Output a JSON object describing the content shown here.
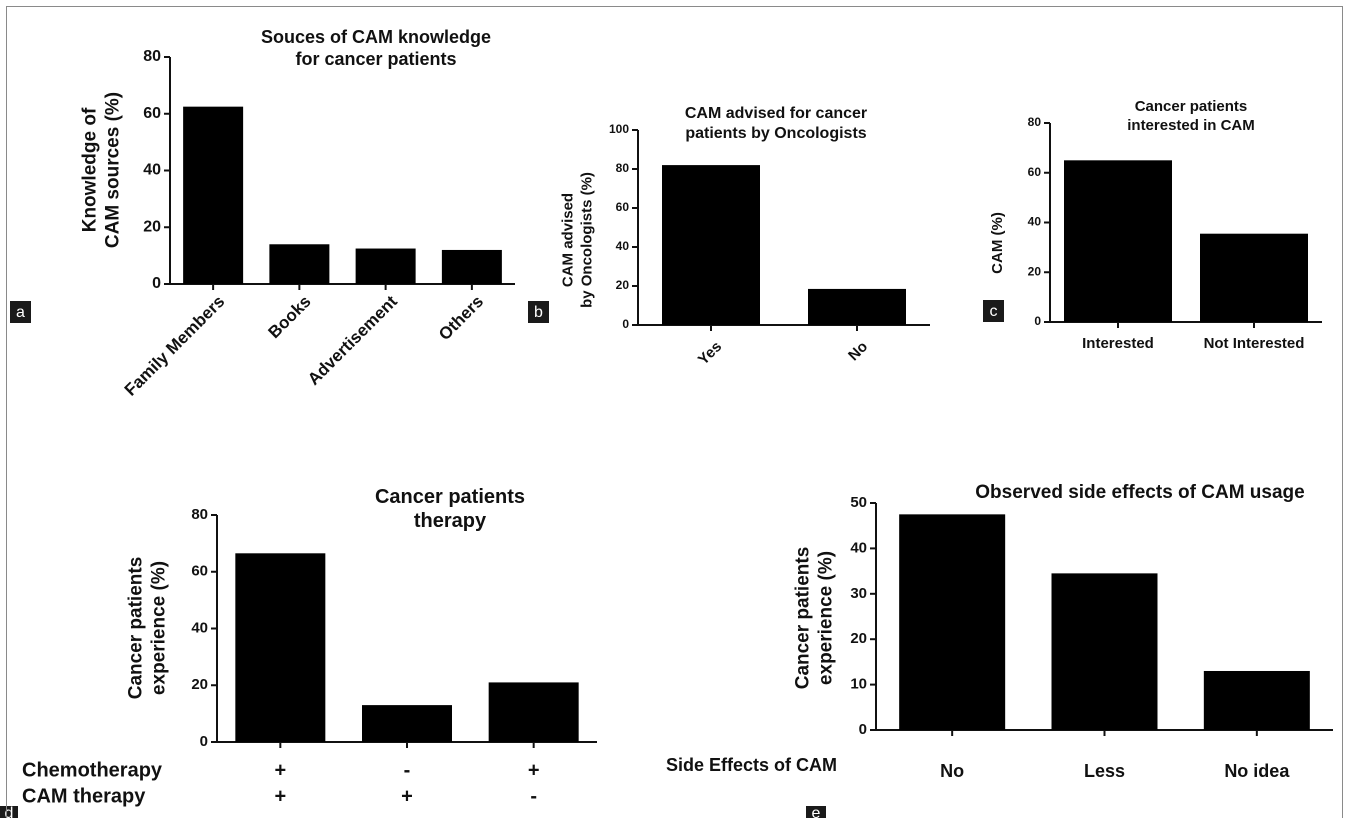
{
  "chart_data": [
    {
      "panel_label": "a",
      "type": "bar",
      "title": "Souces of CAM knowledge\nfor cancer patients",
      "ylabel": "Knowledge of\nCAM sources (%)",
      "xlabel": "",
      "categories": [
        "Family Members",
        "Books",
        "Advertisement",
        "Others"
      ],
      "values": [
        62.5,
        14,
        12.5,
        12
      ],
      "ylim": [
        0,
        80
      ],
      "yticks": [
        0,
        20,
        40,
        60,
        80
      ],
      "bar_color": "#000000"
    },
    {
      "panel_label": "b",
      "type": "bar",
      "title": "CAM advised for cancer\npatients by Oncologists",
      "ylabel": "CAM advised\nby Oncologists (%)",
      "xlabel": "",
      "categories": [
        "Yes",
        "No"
      ],
      "values": [
        82,
        18.5
      ],
      "ylim": [
        0,
        100
      ],
      "yticks": [
        0,
        20,
        40,
        60,
        80,
        100
      ],
      "bar_color": "#000000"
    },
    {
      "panel_label": "c",
      "type": "bar",
      "title": "Cancer patients\ninterested in CAM",
      "ylabel": "CAM (%)",
      "xlabel": "",
      "categories": [
        "Interested",
        "Not Interested"
      ],
      "values": [
        65,
        35.5
      ],
      "ylim": [
        0,
        80
      ],
      "yticks": [
        0,
        20,
        40,
        60,
        80
      ],
      "bar_color": "#000000"
    },
    {
      "panel_label": "d",
      "type": "bar",
      "title": "Cancer patients\ntherapy",
      "ylabel": "Cancer patients\nexperience (%)",
      "xlabel": "",
      "categories": [
        "+/+",
        "-/+",
        "+/-"
      ],
      "values": [
        66.5,
        13,
        21
      ],
      "ylim": [
        0,
        80
      ],
      "yticks": [
        0,
        20,
        40,
        60,
        80
      ],
      "row_labels": [
        "Chemotherapy",
        "CAM therapy"
      ],
      "row_values": [
        [
          "+",
          "-",
          "+"
        ],
        [
          "+",
          "+",
          "-"
        ]
      ],
      "bar_color": "#000000"
    },
    {
      "panel_label": "e",
      "type": "bar",
      "title": "Observed side effects of CAM usage",
      "ylabel": "Cancer patients\nexperience (%)",
      "xlabel": "Side Effects of CAM",
      "categories": [
        "No",
        "Less",
        "No idea"
      ],
      "values": [
        47.5,
        34.5,
        13
      ],
      "ylim": [
        0,
        50
      ],
      "yticks": [
        0,
        10,
        20,
        30,
        40,
        50
      ],
      "bar_color": "#000000"
    }
  ]
}
